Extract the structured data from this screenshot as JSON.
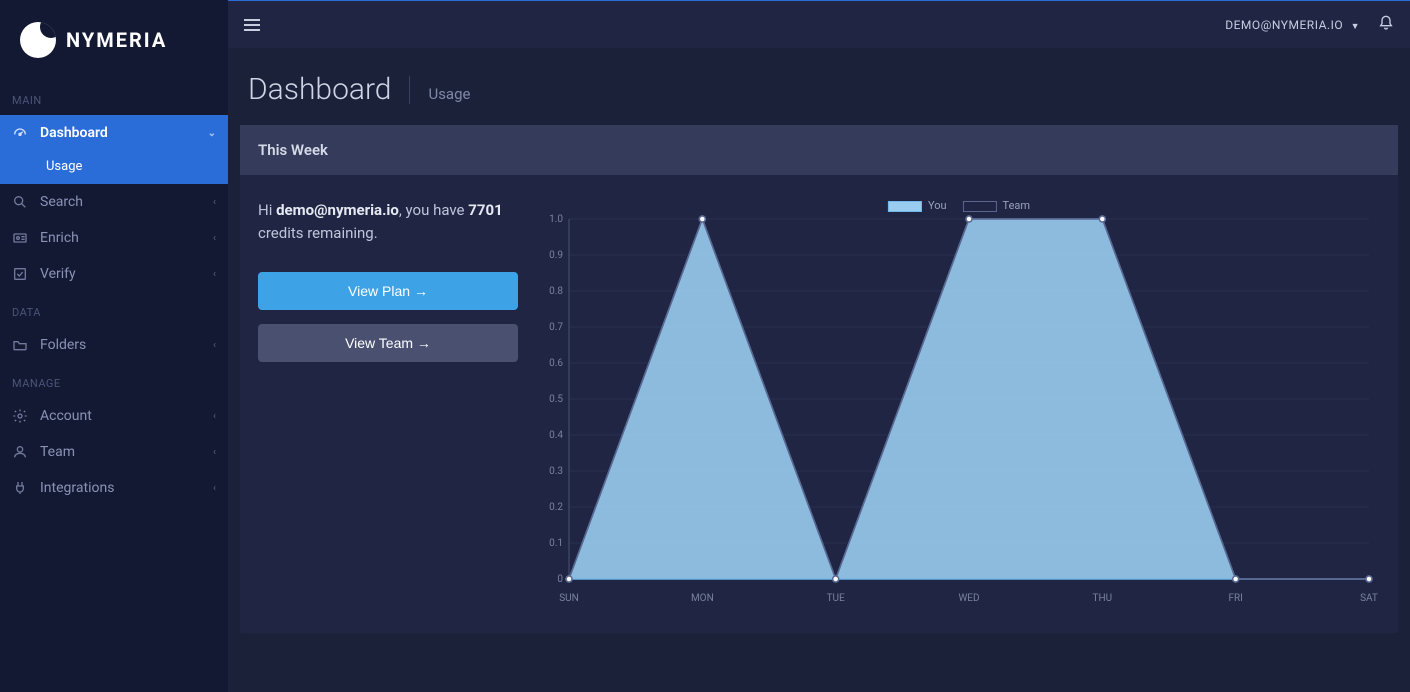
{
  "brand": {
    "name": "NYMERIA"
  },
  "topbar": {
    "user_label": "DEMO@NYMERIA.IO"
  },
  "sidebar": {
    "sections": [
      {
        "label": "MAIN",
        "items": [
          {
            "key": "dashboard",
            "label": "Dashboard",
            "icon": "gauge-icon",
            "active": true,
            "expanded": true,
            "sub": [
              {
                "key": "usage",
                "label": "Usage"
              }
            ]
          },
          {
            "key": "search",
            "label": "Search",
            "icon": "search-icon"
          },
          {
            "key": "enrich",
            "label": "Enrich",
            "icon": "id-card-icon"
          },
          {
            "key": "verify",
            "label": "Verify",
            "icon": "check-square-icon"
          }
        ]
      },
      {
        "label": "DATA",
        "items": [
          {
            "key": "folders",
            "label": "Folders",
            "icon": "folder-icon"
          }
        ]
      },
      {
        "label": "MANAGE",
        "items": [
          {
            "key": "account",
            "label": "Account",
            "icon": "gear-icon"
          },
          {
            "key": "team",
            "label": "Team",
            "icon": "user-icon"
          },
          {
            "key": "integrations",
            "label": "Integrations",
            "icon": "plug-icon"
          }
        ]
      }
    ]
  },
  "page": {
    "title": "Dashboard",
    "breadcrumb": "Usage"
  },
  "card": {
    "title": "This Week",
    "greeting_prefix": "Hi ",
    "greeting_email": "demo@nymeria.io",
    "greeting_mid": ", you have ",
    "credits": "7701",
    "greeting_suffix": " credits remaining.",
    "btn_plan": "View Plan →",
    "btn_team": "View Team →"
  },
  "chart": {
    "type": "area",
    "legend": [
      {
        "key": "you",
        "label": "You",
        "fill": "#99ccee",
        "stroke": "#6fb8e8"
      },
      {
        "key": "team",
        "label": "Team",
        "fill": "none",
        "stroke": "#5a6690"
      }
    ],
    "x_categories": [
      "SUN",
      "MON",
      "TUE",
      "WED",
      "THU",
      "FRI",
      "SAT"
    ],
    "y_ticks": [
      0,
      0.1,
      0.2,
      0.3,
      0.4,
      0.5,
      0.6,
      0.7,
      0.8,
      0.9,
      1.0
    ],
    "ylim": [
      0,
      1.0
    ],
    "series": {
      "you": [
        0,
        1.0,
        0,
        1.0,
        1.0,
        0,
        0
      ],
      "team": [
        0,
        1.0,
        0,
        1.0,
        1.0,
        0,
        0
      ]
    },
    "colors": {
      "you_fill": "#99ccee",
      "you_stroke": "#6fb8e8",
      "team_stroke": "#5a6690",
      "grid": "#2a3050",
      "axis": "#4a5275",
      "label": "#7a829f",
      "background": "#1f2542"
    },
    "fill_opacity_you": 0.9,
    "marker_radius": 3,
    "label_fontsize": 10
  }
}
